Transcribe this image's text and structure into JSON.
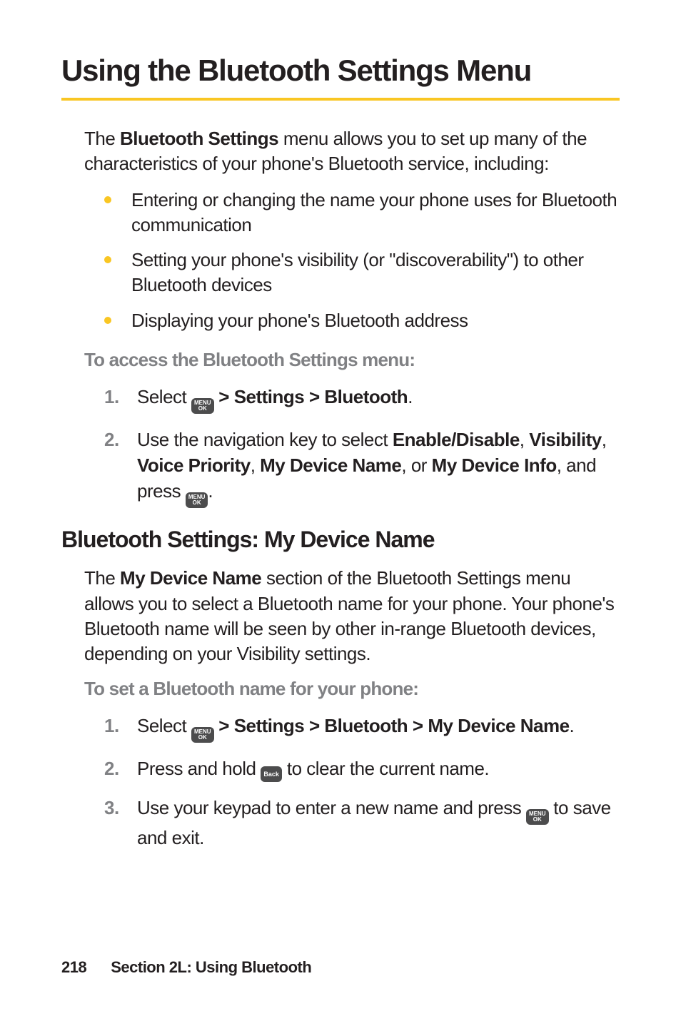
{
  "title": "Using the Bluetooth Settings Menu",
  "intro": {
    "pre": "The ",
    "bold": "Bluetooth Settings",
    "post": " menu allows you to set up many of the characteristics of your phone's Bluetooth service, including:"
  },
  "bullets": [
    "Entering or changing the name your phone uses for Bluetooth communication",
    "Setting your phone's visibility (or \"discoverability\") to other Bluetooth devices",
    "Displaying your phone's Bluetooth address"
  ],
  "access_heading": "To access the Bluetooth Settings menu:",
  "access_steps": {
    "s1": {
      "pre": "Select ",
      "path": " > Settings > Bluetooth",
      "end": "."
    },
    "s2": {
      "pre": "Use the navigation key to select ",
      "b1": "Enable/Disable",
      "c1": ", ",
      "b2": "Visibility",
      "c2": ", ",
      "b3": "Voice Priority",
      "c3": ", ",
      "b4": "My Device Name",
      "c4": ", or ",
      "b5": "My Device Info",
      "post": ", and press ",
      "end": "."
    }
  },
  "h2": "Bluetooth Settings: My Device Name",
  "mdn_intro": {
    "pre": "The ",
    "bold": "My Device Name",
    "post": " section of the Bluetooth Settings menu allows you to select a Bluetooth name for your phone. Your phone's Bluetooth name will be seen by other in-range Bluetooth devices, depending on your Visibility settings."
  },
  "set_heading": "To set a Bluetooth name for your phone:",
  "set_steps": {
    "s1": {
      "pre": "Select ",
      "path": " > Settings > Bluetooth > My Device Name",
      "end": "."
    },
    "s2": {
      "pre": "Press and hold ",
      "post": " to clear the current name."
    },
    "s3": {
      "pre": "Use your keypad to enter a new name and press ",
      "post": " to save and exit."
    }
  },
  "icons": {
    "menu_top": "MENU",
    "menu_bottom": "OK",
    "back": "Back"
  },
  "footer": {
    "pageno": "218",
    "section": "Section 2L: Using Bluetooth"
  },
  "colors": {
    "accent": "#f9c623",
    "grey": "#808184",
    "key_bg": "#4c4c4d",
    "text": "#231f20"
  }
}
